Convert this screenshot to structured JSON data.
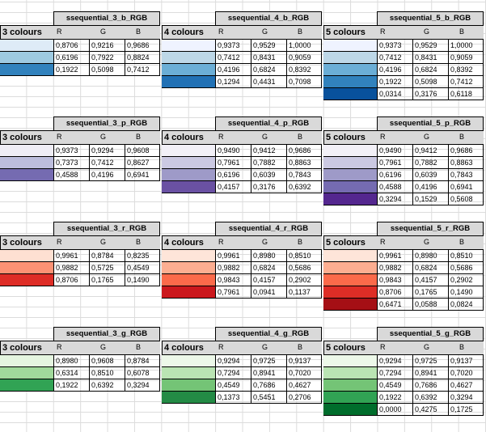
{
  "row_label": "3 colours",
  "headers": [
    "R",
    "G",
    "B"
  ],
  "blocks": [
    {
      "title": "ssequential_3_b_RGB",
      "label": "3 colours",
      "rows": [
        {
          "r": "0,8706",
          "g": "0,9216",
          "b": "0,9686"
        },
        {
          "r": "0,6196",
          "g": "0,7922",
          "b": "0,8824"
        },
        {
          "r": "0,1922",
          "g": "0,5098",
          "b": "0,7412"
        }
      ]
    },
    {
      "title": "ssequential_4_b_RGB",
      "label": "4 colours",
      "rows": [
        {
          "r": "0,9373",
          "g": "0,9529",
          "b": "1,0000"
        },
        {
          "r": "0,7412",
          "g": "0,8431",
          "b": "0,9059"
        },
        {
          "r": "0,4196",
          "g": "0,6824",
          "b": "0,8392"
        },
        {
          "r": "0,1294",
          "g": "0,4431",
          "b": "0,7098"
        }
      ]
    },
    {
      "title": "ssequential_5_b_RGB",
      "label": "5 colours",
      "rows": [
        {
          "r": "0,9373",
          "g": "0,9529",
          "b": "1,0000"
        },
        {
          "r": "0,7412",
          "g": "0,8431",
          "b": "0,9059"
        },
        {
          "r": "0,4196",
          "g": "0,6824",
          "b": "0,8392"
        },
        {
          "r": "0,1922",
          "g": "0,5098",
          "b": "0,7412"
        },
        {
          "r": "0,0314",
          "g": "0,3176",
          "b": "0,6118"
        }
      ]
    },
    {
      "title": "ssequential_3_p_RGB",
      "label": "3 colours",
      "rows": [
        {
          "r": "0,9373",
          "g": "0,9294",
          "b": "0,9608"
        },
        {
          "r": "0,7373",
          "g": "0,7412",
          "b": "0,8627"
        },
        {
          "r": "0,4588",
          "g": "0,4196",
          "b": "0,6941"
        }
      ]
    },
    {
      "title": "ssequential_4_p_RGB",
      "label": "4 colours",
      "rows": [
        {
          "r": "0,9490",
          "g": "0,9412",
          "b": "0,9686"
        },
        {
          "r": "0,7961",
          "g": "0,7882",
          "b": "0,8863"
        },
        {
          "r": "0,6196",
          "g": "0,6039",
          "b": "0,7843"
        },
        {
          "r": "0,4157",
          "g": "0,3176",
          "b": "0,6392"
        }
      ]
    },
    {
      "title": "ssequential_5_p_RGB",
      "label": "5 colours",
      "rows": [
        {
          "r": "0,9490",
          "g": "0,9412",
          "b": "0,9686"
        },
        {
          "r": "0,7961",
          "g": "0,7882",
          "b": "0,8863"
        },
        {
          "r": "0,6196",
          "g": "0,6039",
          "b": "0,7843"
        },
        {
          "r": "0,4588",
          "g": "0,4196",
          "b": "0,6941"
        },
        {
          "r": "0,3294",
          "g": "0,1529",
          "b": "0,5608"
        }
      ]
    },
    {
      "title": "ssequential_3_r_RGB",
      "label": "3 colours",
      "rows": [
        {
          "r": "0,9961",
          "g": "0,8784",
          "b": "0,8235"
        },
        {
          "r": "0,9882",
          "g": "0,5725",
          "b": "0,4549"
        },
        {
          "r": "0,8706",
          "g": "0,1765",
          "b": "0,1490"
        }
      ]
    },
    {
      "title": "ssequential_4_r_RGB",
      "label": "4 colours",
      "rows": [
        {
          "r": "0,9961",
          "g": "0,8980",
          "b": "0,8510"
        },
        {
          "r": "0,9882",
          "g": "0,6824",
          "b": "0,5686"
        },
        {
          "r": "0,9843",
          "g": "0,4157",
          "b": "0,2902"
        },
        {
          "r": "0,7961",
          "g": "0,0941",
          "b": "0,1137"
        }
      ]
    },
    {
      "title": "ssequential_5_r_RGB",
      "label": "5 colours",
      "rows": [
        {
          "r": "0,9961",
          "g": "0,8980",
          "b": "0,8510"
        },
        {
          "r": "0,9882",
          "g": "0,6824",
          "b": "0,5686"
        },
        {
          "r": "0,9843",
          "g": "0,4157",
          "b": "0,2902"
        },
        {
          "r": "0,8706",
          "g": "0,1765",
          "b": "0,1490"
        },
        {
          "r": "0,6471",
          "g": "0,0588",
          "b": "0,0824"
        }
      ]
    },
    {
      "title": "ssequential_3_g_RGB",
      "label": "3 colours",
      "rows": [
        {
          "r": "0,8980",
          "g": "0,9608",
          "b": "0,8784"
        },
        {
          "r": "0,6314",
          "g": "0,8510",
          "b": "0,6078"
        },
        {
          "r": "0,1922",
          "g": "0,6392",
          "b": "0,3294"
        }
      ]
    },
    {
      "title": "ssequential_4_g_RGB",
      "label": "4 colours",
      "rows": [
        {
          "r": "0,9294",
          "g": "0,9725",
          "b": "0,9137"
        },
        {
          "r": "0,7294",
          "g": "0,8941",
          "b": "0,7020"
        },
        {
          "r": "0,4549",
          "g": "0,7686",
          "b": "0,4627"
        },
        {
          "r": "0,1373",
          "g": "0,5451",
          "b": "0,2706"
        }
      ]
    },
    {
      "title": "ssequential_5_g_RGB",
      "label": "5 colours",
      "rows": [
        {
          "r": "0,9294",
          "g": "0,9725",
          "b": "0,9137"
        },
        {
          "r": "0,7294",
          "g": "0,8941",
          "b": "0,7020"
        },
        {
          "r": "0,4549",
          "g": "0,7686",
          "b": "0,4627"
        },
        {
          "r": "0,1922",
          "g": "0,6392",
          "b": "0,3294"
        },
        {
          "r": "0,0000",
          "g": "0,4275",
          "b": "0,1725"
        }
      ]
    }
  ]
}
